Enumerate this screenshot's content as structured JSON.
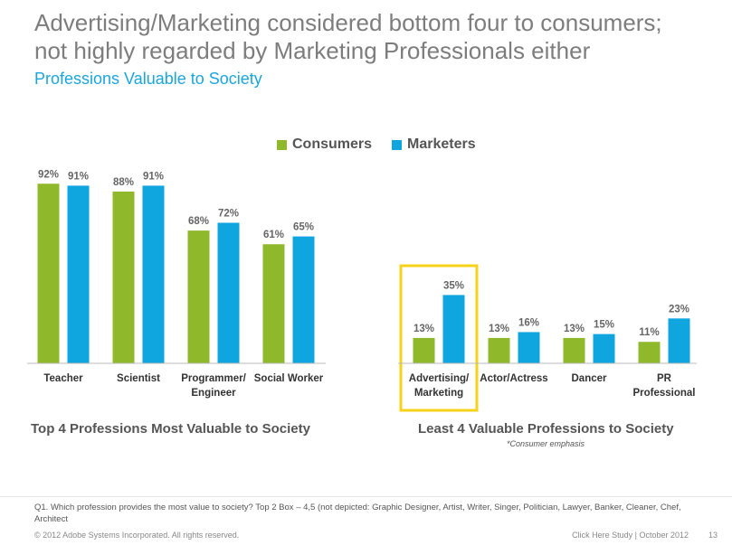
{
  "slide": {
    "title_line1": "Advertising/Marketing considered bottom four to consumers;",
    "title_line2": "not highly regarded by Marketing Professionals either",
    "subtitle": "Professions Valuable to Society",
    "section_left": "Top 4 Professions Most Valuable to Society",
    "section_right": "Least 4 Valuable Professions to Society",
    "note": "*Consumer emphasis",
    "footnote": "Q1. Which profession provides the most value to society? Top 2 Box – 4,5 (not depicted: Graphic Designer, Artist, Writer, Singer, Politician, Lawyer, Banker, Cleaner, Chef, Architect",
    "copyright": "© 2012 Adobe Systems Incorporated. All rights reserved.",
    "study": "Click Here Study  |  October 2012",
    "page_number": "13"
  },
  "colors": {
    "consumers": "#8fb82b",
    "marketers": "#0fa6df",
    "highlight": "#f6d21b"
  },
  "chart_data": {
    "type": "bar",
    "categories": [
      "Teacher",
      "Scientist",
      "Programmer/ Engineer",
      "Social Worker",
      "Advertising/ Marketing",
      "Actor/Actress",
      "Dancer",
      "PR Professional"
    ],
    "category_lines": [
      [
        "Teacher"
      ],
      [
        "Scientist"
      ],
      [
        "Programmer/",
        "Engineer"
      ],
      [
        "Social Worker"
      ],
      [
        "Advertising/",
        "Marketing"
      ],
      [
        "Actor/Actress"
      ],
      [
        "Dancer"
      ],
      [
        "PR",
        "Professional"
      ]
    ],
    "series": [
      {
        "name": "Consumers",
        "values": [
          92,
          88,
          68,
          61,
          13,
          13,
          13,
          11
        ]
      },
      {
        "name": "Marketers",
        "values": [
          91,
          91,
          72,
          65,
          35,
          16,
          15,
          23
        ]
      }
    ],
    "value_suffix": "%",
    "highlighted_category": "Advertising/ Marketing",
    "ylim": [
      0,
      100
    ],
    "legend_position": "top"
  }
}
